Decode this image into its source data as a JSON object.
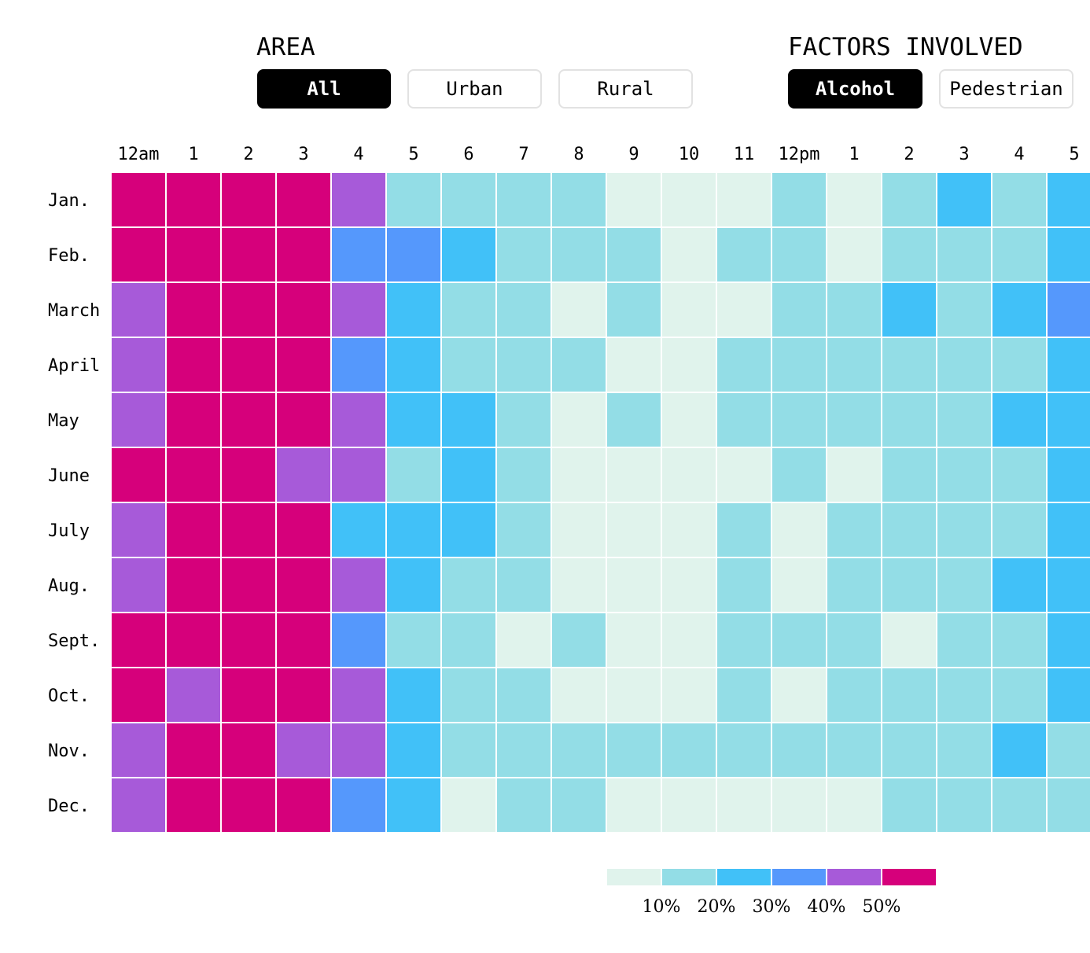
{
  "filters": {
    "area": {
      "title": "AREA",
      "options": [
        "All",
        "Urban",
        "Rural"
      ],
      "selected": "All"
    },
    "factors": {
      "title": "FACTORS INVOLVED",
      "options": [
        "Alcohol",
        "Pedestrian"
      ],
      "selected": "Alcohol"
    }
  },
  "colors": {
    "active_button": "#000000",
    "button_border": "#e2e2e2",
    "grid_line": "#ffffff"
  },
  "chart_data": {
    "type": "heatmap",
    "title": "",
    "x_tick_labels": [
      "12am",
      "1",
      "2",
      "3",
      "4",
      "5",
      "6",
      "7",
      "8",
      "9",
      "10",
      "11",
      "12pm",
      "1",
      "2",
      "3",
      "4",
      "5"
    ],
    "y_tick_labels": [
      "Jan.",
      "Feb.",
      "March",
      "April",
      "May",
      "June",
      "July",
      "Aug.",
      "Sept.",
      "Oct.",
      "Nov.",
      "Dec."
    ],
    "color_scale": {
      "thresholds": [
        10,
        20,
        30,
        40,
        50
      ],
      "threshold_labels": [
        "10%",
        "20%",
        "30%",
        "40%",
        "50%"
      ],
      "colors": [
        "#e0f3ec",
        "#93dde6",
        "#41c1f8",
        "#5598fc",
        "#a75ad9",
        "#d6007b"
      ]
    },
    "values": [
      [
        55,
        55,
        55,
        55,
        45,
        15,
        15,
        15,
        15,
        5,
        5,
        5,
        15,
        5,
        15,
        25,
        15,
        25
      ],
      [
        55,
        55,
        55,
        55,
        35,
        35,
        25,
        15,
        15,
        15,
        5,
        15,
        15,
        5,
        15,
        15,
        15,
        25
      ],
      [
        45,
        55,
        55,
        55,
        45,
        25,
        15,
        15,
        5,
        15,
        5,
        5,
        15,
        15,
        25,
        15,
        25,
        35
      ],
      [
        45,
        55,
        55,
        55,
        35,
        25,
        15,
        15,
        15,
        5,
        5,
        15,
        15,
        15,
        15,
        15,
        15,
        25
      ],
      [
        45,
        55,
        55,
        55,
        45,
        25,
        25,
        15,
        5,
        15,
        5,
        15,
        15,
        15,
        15,
        15,
        25,
        25
      ],
      [
        55,
        55,
        55,
        45,
        45,
        15,
        25,
        15,
        5,
        5,
        5,
        5,
        15,
        5,
        15,
        15,
        15,
        25
      ],
      [
        45,
        55,
        55,
        55,
        25,
        25,
        25,
        15,
        5,
        5,
        5,
        15,
        5,
        15,
        15,
        15,
        15,
        25
      ],
      [
        45,
        55,
        55,
        55,
        45,
        25,
        15,
        15,
        5,
        5,
        5,
        15,
        5,
        15,
        15,
        15,
        25,
        25
      ],
      [
        55,
        55,
        55,
        55,
        35,
        15,
        15,
        5,
        15,
        5,
        5,
        15,
        15,
        15,
        5,
        15,
        15,
        25
      ],
      [
        55,
        45,
        55,
        55,
        45,
        25,
        15,
        15,
        5,
        5,
        5,
        15,
        5,
        15,
        15,
        15,
        15,
        25
      ],
      [
        45,
        55,
        55,
        45,
        45,
        25,
        15,
        15,
        15,
        15,
        15,
        15,
        15,
        15,
        15,
        15,
        25,
        15
      ],
      [
        45,
        55,
        55,
        55,
        35,
        25,
        5,
        15,
        15,
        5,
        5,
        5,
        5,
        5,
        15,
        15,
        15,
        15
      ]
    ]
  }
}
